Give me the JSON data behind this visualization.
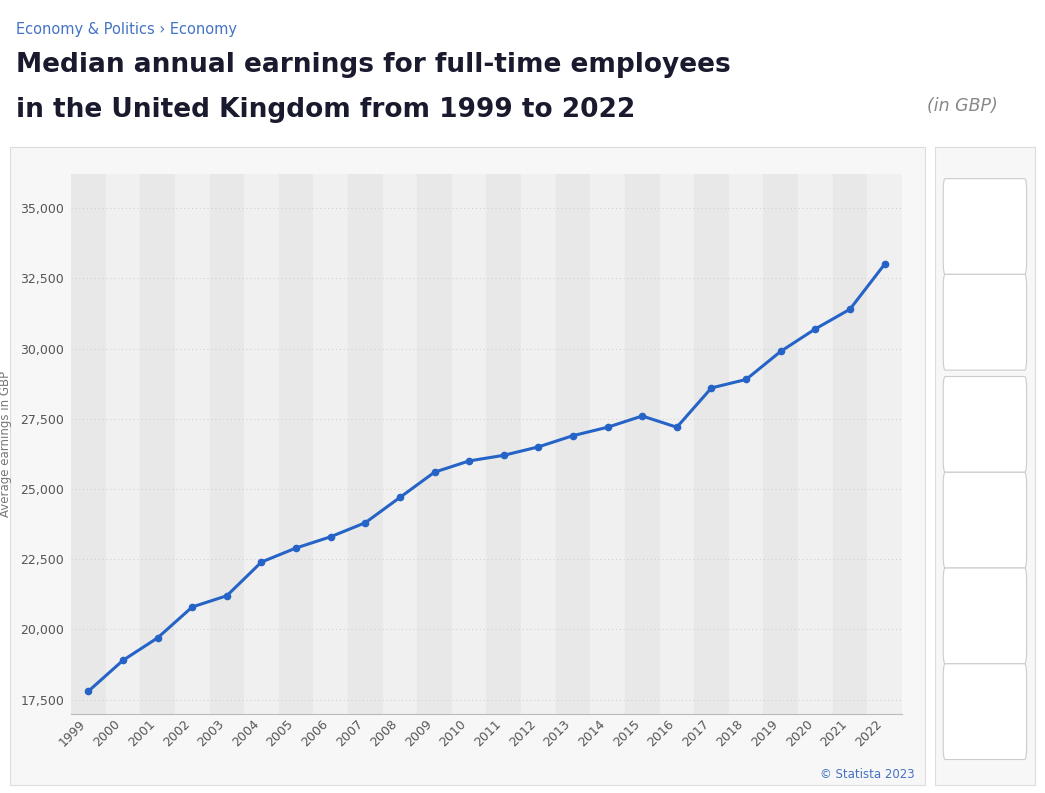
{
  "years": [
    1999,
    2000,
    2001,
    2002,
    2003,
    2004,
    2005,
    2006,
    2007,
    2008,
    2009,
    2010,
    2011,
    2012,
    2013,
    2014,
    2015,
    2016,
    2017,
    2018,
    2019,
    2020,
    2021,
    2022
  ],
  "values": [
    17800,
    18900,
    19700,
    20800,
    21200,
    22400,
    22900,
    23300,
    23800,
    24700,
    25600,
    26000,
    26200,
    26500,
    26900,
    27200,
    27600,
    27200,
    28600,
    28900,
    29900,
    30700,
    31400,
    33000
  ],
  "line_color": "#2563c7",
  "marker_color": "#2563c7",
  "background_color": "#ffffff",
  "plot_bg_color": "#f0f0f0",
  "band_dark": "#e8e8e8",
  "band_light": "#f0f0f0",
  "grid_color": "#cccccc",
  "title_line1": "Median annual earnings for full-time employees",
  "title_line2": "in the United Kingdom from 1999 to 2022",
  "subtitle": "(in GBP)",
  "breadcrumb": "Economy & Politics › Economy",
  "ylabel": "Average earnings in GBP",
  "ylabel_color": "#777777",
  "yticks": [
    17500,
    20000,
    22500,
    25000,
    27500,
    30000,
    32500,
    35000
  ],
  "ylim": [
    17000,
    36200
  ],
  "copyright": "© Statista 2023",
  "title_color": "#1a1a2e",
  "breadcrumb_color": "#4472c4",
  "subtitle_color": "#888888",
  "icon_panel_color": "#f5f5f5",
  "icon_border_color": "#dddddd"
}
